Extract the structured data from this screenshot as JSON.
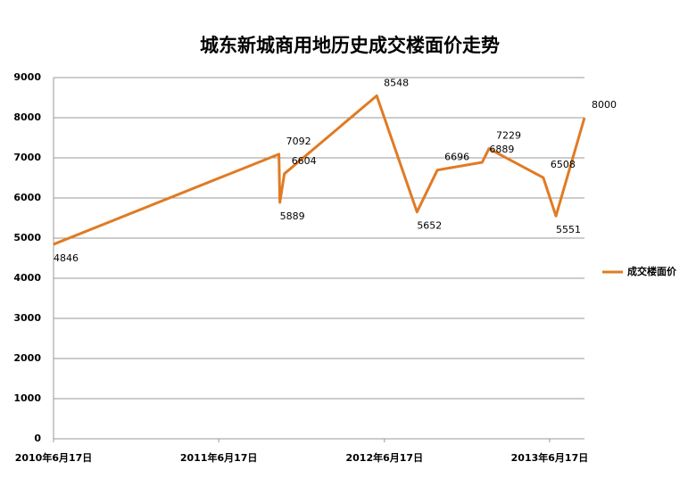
{
  "chart_data": {
    "type": "line",
    "title": "城东新城商用地历史成交楼面价走势",
    "x": [
      "2010-06-17",
      "2011-10-28",
      "2011-10-30",
      "2011-11-09",
      "2012-05-31",
      "2012-08-28",
      "2012-10-12",
      "2013-01-19",
      "2013-02-03",
      "2013-06-03",
      "2013-07-01",
      "2013-09-02"
    ],
    "series": [
      {
        "name": "成交楼面价",
        "color": "#e07b24",
        "values": [
          4846,
          7092,
          5889,
          6604,
          8548,
          5652,
          6696,
          6889,
          7229,
          6508,
          5551,
          8000
        ]
      }
    ],
    "xlim": [
      "2010-06-17",
      "2013-09-02"
    ],
    "xticks": [
      {
        "value": "2010-06-17",
        "label": "2010年6月17日"
      },
      {
        "value": "2011-06-17",
        "label": "2011年6月17日"
      },
      {
        "value": "2012-06-17",
        "label": "2012年6月17日"
      },
      {
        "value": "2013-06-17",
        "label": "2013年6月17日"
      }
    ],
    "ylim": [
      0,
      9000
    ],
    "yticks": [
      0,
      1000,
      2000,
      3000,
      4000,
      5000,
      6000,
      7000,
      8000,
      9000
    ],
    "grid": true,
    "legend": "right"
  }
}
